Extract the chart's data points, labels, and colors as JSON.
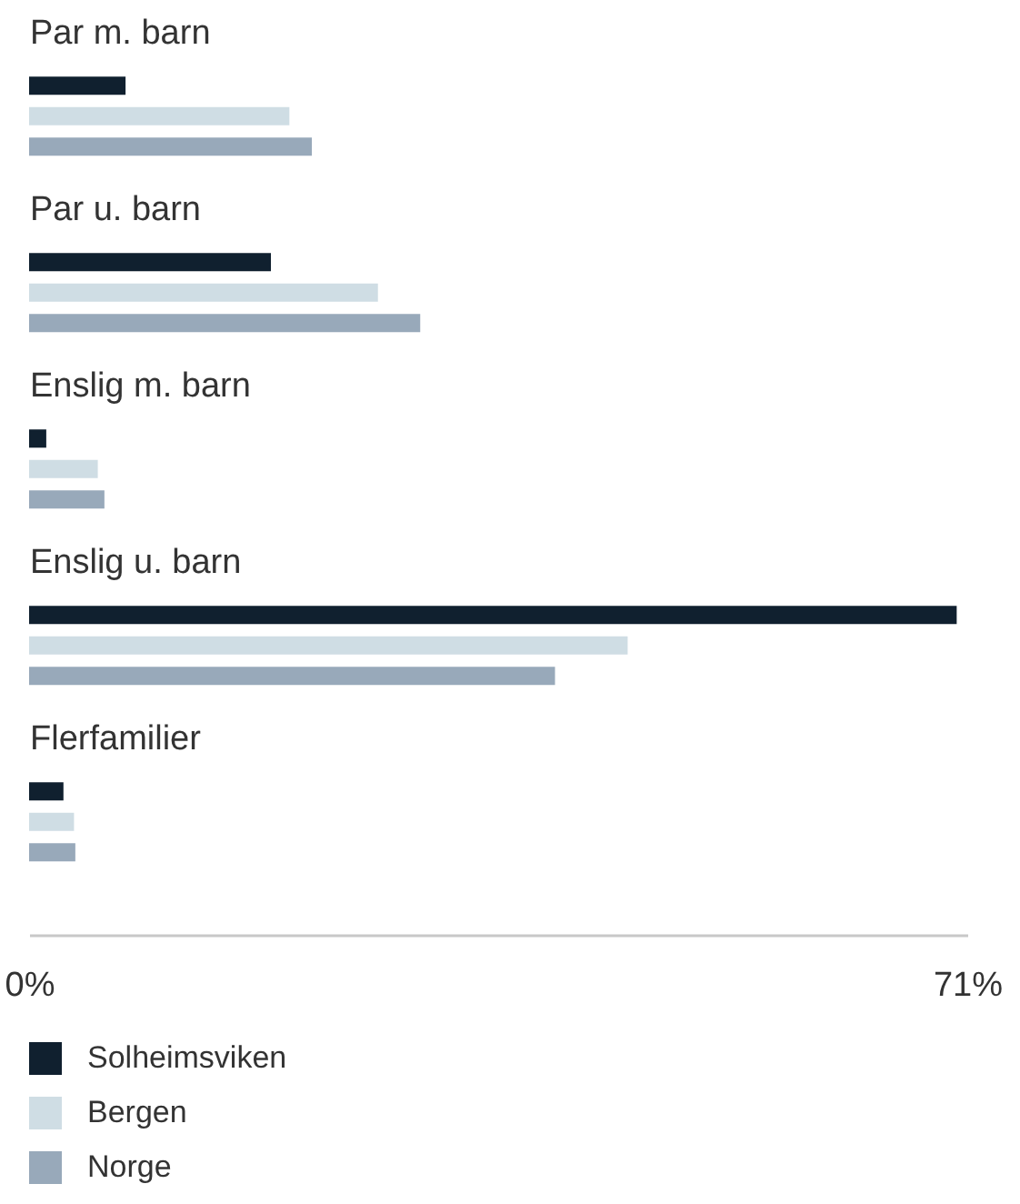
{
  "chart_data": {
    "type": "bar",
    "orientation": "horizontal",
    "categories": [
      "Par m. barn",
      "Par u. barn",
      "Enslig m. barn",
      "Enslig u. barn",
      "Flerfamilier"
    ],
    "series": [
      {
        "name": "Solheimsviken",
        "color": "#10202f",
        "values": [
          7.3,
          18.3,
          1.3,
          70.2,
          2.6
        ]
      },
      {
        "name": "Bergen",
        "color": "#cfdde4",
        "values": [
          19.7,
          26.4,
          5.2,
          45.3,
          3.4
        ]
      },
      {
        "name": "Norge",
        "color": "#98a9ba",
        "values": [
          21.4,
          29.6,
          5.7,
          39.8,
          3.5
        ]
      }
    ],
    "xlim": [
      0,
      71
    ],
    "xticks": [
      {
        "value": 0,
        "label": "0%"
      },
      {
        "value": 71,
        "label": "71%"
      }
    ],
    "grid": false,
    "legend": "bottom left"
  }
}
